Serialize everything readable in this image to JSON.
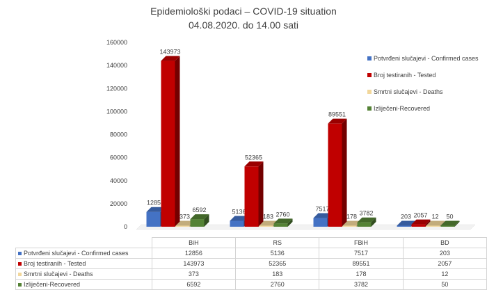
{
  "title_line1": "Epidemiološki podaci – COVID-19 situation",
  "title_line2": "04.08.2020. do 14.00 sati",
  "chart_data": {
    "type": "bar",
    "categories": [
      "BiH",
      "RS",
      "FBiH",
      "BD"
    ],
    "ylim": [
      0,
      160000
    ],
    "yticks": [
      0,
      20000,
      40000,
      60000,
      80000,
      100000,
      120000,
      140000,
      160000
    ],
    "series": [
      {
        "name": "Potvrđeni slučajevi - Confirmed cases",
        "color": "#4472c4",
        "values": [
          12856,
          5136,
          7517,
          203
        ]
      },
      {
        "name": "Broj testiranih - Tested",
        "color": "#c00000",
        "values": [
          143973,
          52365,
          89551,
          2057
        ]
      },
      {
        "name": "Smrtni slučajevi - Deaths",
        "color": "#f2d79b",
        "values": [
          373,
          183,
          178,
          12
        ]
      },
      {
        "name": "Izliječeni-Recovered",
        "color": "#548235",
        "values": [
          6592,
          2760,
          3782,
          50
        ]
      }
    ],
    "legend_position": "right",
    "grid": false,
    "data_table": true
  }
}
